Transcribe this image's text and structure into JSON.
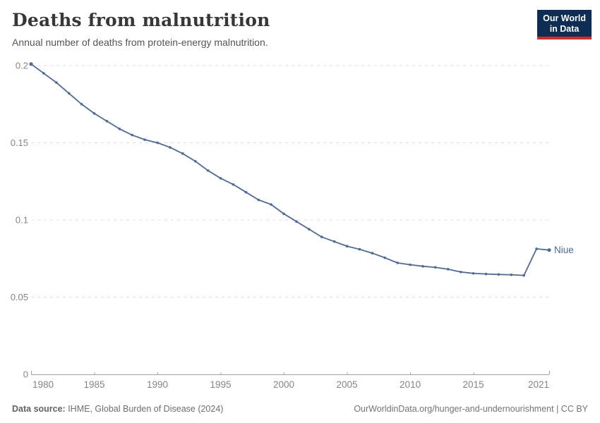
{
  "header": {
    "title": "Deaths from malnutrition",
    "subtitle": "Annual number of deaths from protein-energy malnutrition.",
    "logo": {
      "line1": "Our World",
      "line2": "in Data"
    }
  },
  "chart_data": {
    "type": "line",
    "title": "Deaths from malnutrition",
    "xlabel": "",
    "ylabel": "",
    "xlim": [
      1980,
      2021
    ],
    "ylim": [
      0,
      0.2
    ],
    "x_ticks": [
      1980,
      1985,
      1990,
      1995,
      2000,
      2005,
      2010,
      2015,
      2021
    ],
    "y_ticks": [
      0,
      0.05,
      0.1,
      0.15,
      0.2
    ],
    "grid": "horizontal-dashed",
    "legend_position": "end-of-line-label",
    "x": [
      1980,
      1981,
      1982,
      1983,
      1984,
      1985,
      1986,
      1987,
      1988,
      1989,
      1990,
      1991,
      1992,
      1993,
      1994,
      1995,
      1996,
      1997,
      1998,
      1999,
      2000,
      2001,
      2002,
      2003,
      2004,
      2005,
      2006,
      2007,
      2008,
      2009,
      2010,
      2011,
      2012,
      2013,
      2014,
      2015,
      2016,
      2017,
      2018,
      2019,
      2020,
      2021
    ],
    "series": [
      {
        "name": "Niue",
        "end_label": "Niue",
        "values": [
          0.201,
          0.195,
          0.189,
          0.182,
          0.175,
          0.169,
          0.164,
          0.159,
          0.155,
          0.152,
          0.15,
          0.147,
          0.143,
          0.138,
          0.132,
          0.127,
          0.123,
          0.118,
          0.113,
          0.11,
          0.104,
          0.099,
          0.094,
          0.089,
          0.086,
          0.083,
          0.081,
          0.0785,
          0.0755,
          0.0722,
          0.071,
          0.07,
          0.0693,
          0.0681,
          0.0663,
          0.0654,
          0.065,
          0.0647,
          0.0645,
          0.0641,
          0.0813,
          0.0805
        ]
      }
    ],
    "colors": {
      "line": "#4C6A9C",
      "grid": "#dcdcdc",
      "axis": "#a3a3a3",
      "tick_label": "#858585"
    }
  },
  "footer": {
    "source_label": "Data source:",
    "source_text": " IHME, Global Burden of Disease (2024)",
    "link": "OurWorldinData.org/hunger-and-undernourishment",
    "separator": " | ",
    "license": "CC BY"
  }
}
